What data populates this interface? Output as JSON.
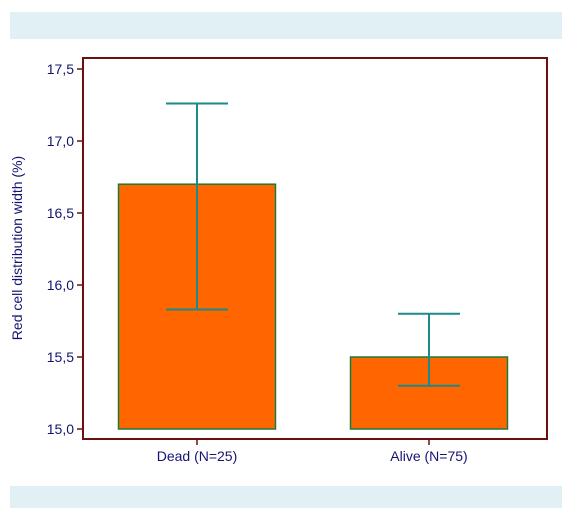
{
  "chart_data": {
    "type": "bar",
    "categories": [
      "Dead (N=25)",
      "Alive (N=75)"
    ],
    "values": [
      16.7,
      15.5
    ],
    "error_low": [
      15.83,
      15.3
    ],
    "error_high": [
      17.26,
      15.8
    ],
    "title": "",
    "xlabel": "",
    "ylabel": "Red cell distribution width (%)",
    "ylim": [
      15.0,
      17.5
    ],
    "yticks": [
      15.0,
      15.5,
      16.0,
      16.5,
      17.0,
      17.5
    ],
    "ytick_labels": [
      "15,0",
      "15,5",
      "16,0",
      "16,5",
      "17,0",
      "17,5"
    ],
    "grid": false,
    "colors": {
      "bar_fill": "#ff6600",
      "bar_stroke": "#1a7a3a",
      "error_bar": "#1a8a8a",
      "axis": "#6b0f0f",
      "text": "#141470"
    }
  }
}
